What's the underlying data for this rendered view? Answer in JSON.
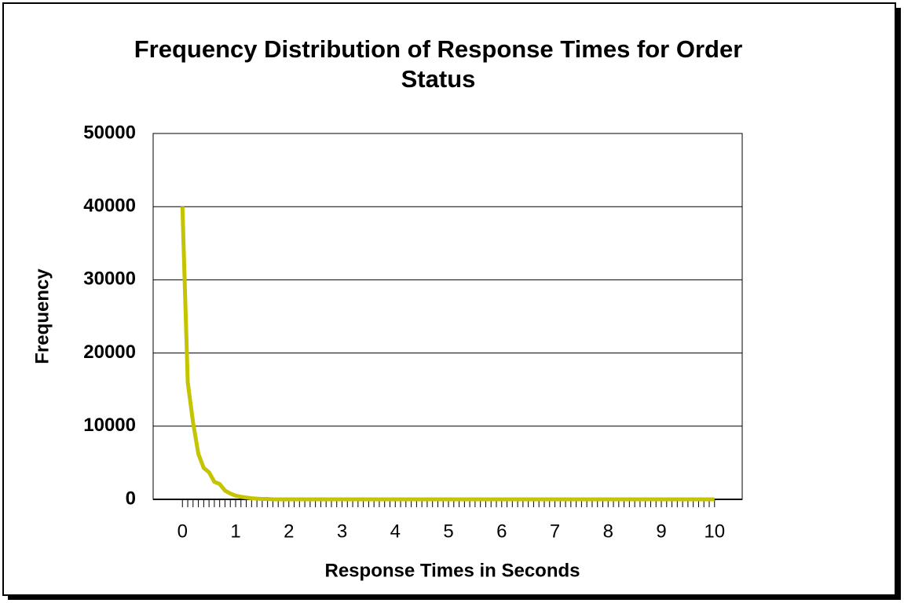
{
  "chart_data": {
    "type": "line",
    "title": "Frequency Distribution of Response Times for Order Status",
    "xlabel": "Response Times in Seconds",
    "ylabel": "Frequency",
    "x": [
      0,
      0.1,
      0.2,
      0.3,
      0.4,
      0.5,
      0.6,
      0.7,
      0.8,
      0.9,
      1,
      1.1,
      1.2,
      1.3,
      1.4,
      1.5,
      1.6,
      1.7,
      1.8,
      1.9,
      2,
      2.1,
      2.2,
      2.3,
      2.4,
      2.5,
      2.6,
      2.7,
      2.8,
      2.9,
      3,
      3.1,
      3.2,
      3.3,
      3.4,
      3.5,
      3.6,
      3.7,
      3.8,
      3.9,
      4,
      4.1,
      4.2,
      4.3,
      4.4,
      4.5,
      4.6,
      4.7,
      4.8,
      4.9,
      5,
      5.1,
      5.2,
      5.3,
      5.4,
      5.5,
      5.6,
      5.7,
      5.8,
      5.9,
      6,
      6.1,
      6.2,
      6.3,
      6.4,
      6.5,
      6.6,
      6.7,
      6.8,
      6.9,
      7,
      7.1,
      7.2,
      7.3,
      7.4,
      7.5,
      7.6,
      7.7,
      7.8,
      7.9,
      8,
      8.1,
      8.2,
      8.3,
      8.4,
      8.5,
      8.6,
      8.7,
      8.8,
      8.9,
      9,
      9.1,
      9.2,
      9.3,
      9.4,
      9.5,
      9.6,
      9.7,
      9.8,
      9.9,
      10
    ],
    "series": [
      {
        "color": "#c4c400",
        "values": [
          40000,
          16000,
          10500,
          6200,
          4300,
          3700,
          2400,
          2100,
          1200,
          800,
          500,
          350,
          250,
          150,
          100,
          50,
          50,
          0,
          0,
          0,
          0,
          0,
          0,
          0,
          0,
          0,
          0,
          0,
          0,
          0,
          0,
          0,
          0,
          0,
          0,
          0,
          0,
          0,
          0,
          0,
          0,
          0,
          0,
          0,
          0,
          0,
          0,
          0,
          0,
          0,
          0,
          0,
          0,
          0,
          0,
          0,
          0,
          0,
          0,
          0,
          0,
          0,
          0,
          0,
          0,
          0,
          0,
          0,
          0,
          0,
          0,
          0,
          0,
          0,
          0,
          0,
          0,
          0,
          0,
          0,
          0,
          0,
          0,
          0,
          0,
          0,
          0,
          0,
          0,
          0,
          0,
          0,
          0,
          0,
          0,
          0,
          0,
          0,
          0,
          0,
          0
        ]
      }
    ],
    "xlim": [
      -0.55,
      10.52
    ],
    "xticks": [
      0,
      1,
      2,
      3,
      4,
      5,
      6,
      7,
      8,
      9,
      10
    ],
    "ylim": [
      0,
      50000
    ],
    "yticks": [
      0,
      10000,
      20000,
      30000,
      40000,
      50000
    ],
    "grid": true
  }
}
